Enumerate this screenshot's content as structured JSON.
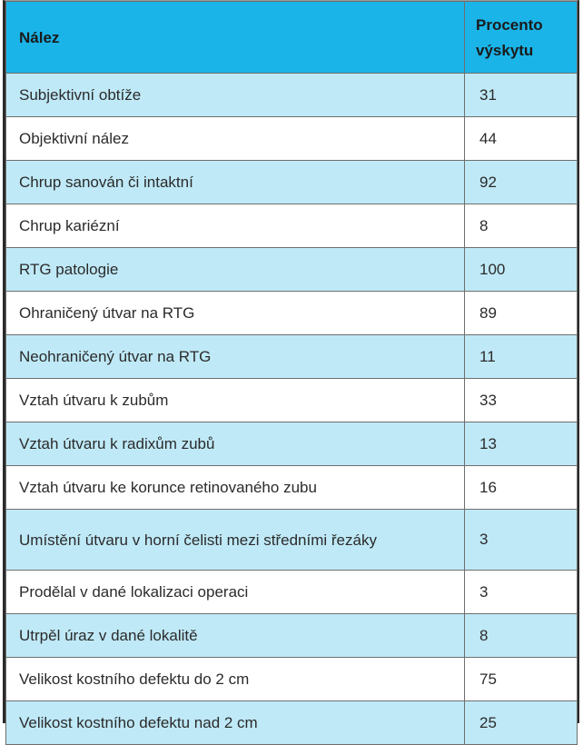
{
  "table": {
    "headers": [
      "Nález",
      "Procento výskytu"
    ],
    "rows": [
      [
        "Subjektivní obtíže",
        "31"
      ],
      [
        "Objektivní nález",
        "44"
      ],
      [
        "Chrup sanován či intaktní",
        "92"
      ],
      [
        "Chrup kariézní",
        "8"
      ],
      [
        "RTG patologie",
        "100"
      ],
      [
        "Ohraničený útvar na RTG",
        "89"
      ],
      [
        "Neohraničený útvar na RTG",
        "11"
      ],
      [
        "Vztah útvaru k zubům",
        "33"
      ],
      [
        "Vztah útvaru k radixům zubů",
        "13"
      ],
      [
        "Vztah útvaru ke korunce retinovaného zubu",
        "16"
      ],
      [
        "Umístění útvaru v horní čelisti mezi středními řezáky",
        "3"
      ],
      [
        "Prodělal v dané lokalizaci operaci",
        "3"
      ],
      [
        "Utrpěl úraz v dané lokalitě",
        "8"
      ],
      [
        "Velikost kostního defektu do 2 cm",
        "75"
      ],
      [
        "Velikost kostního defektu nad 2 cm",
        "25"
      ]
    ]
  },
  "colors": {
    "header_bg": "#1ab4e8",
    "stripe_bg": "#bfe9f7",
    "row_bg": "#ffffff",
    "border": "#6e6e6e"
  }
}
